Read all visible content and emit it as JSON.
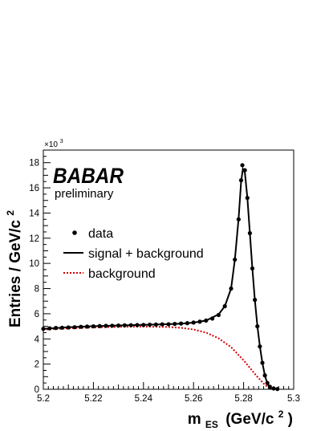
{
  "chart_data": {
    "type": "scatter",
    "xlabel_main": "m",
    "xlabel_sub": "ES",
    "xlabel_units": "(GeV/c",
    "xlabel_units_sup": "2",
    "xlabel_units_close": ")",
    "ylabel": "Entries / GeV/c",
    "ylabel_sup": "2",
    "y_multiplier_base": "×10",
    "y_multiplier_exp": "3",
    "xlim": [
      5.2,
      5.3
    ],
    "ylim": [
      0,
      19000
    ],
    "x_ticks": [
      "5.2",
      "5.22",
      "5.24",
      "5.26",
      "5.28",
      "5.3"
    ],
    "x_tick_values": [
      5.2,
      5.22,
      5.24,
      5.26,
      5.28,
      5.3
    ],
    "y_ticks": [
      "0",
      "2",
      "4",
      "6",
      "8",
      "10",
      "12",
      "14",
      "16",
      "18"
    ],
    "y_tick_values": [
      0,
      2000,
      4000,
      6000,
      8000,
      10000,
      12000,
      14000,
      16000,
      18000
    ],
    "grid": false,
    "legend_position": "left",
    "experiment_logo": "BABAR",
    "logo_subtitle": "preliminary",
    "series": [
      {
        "name": "data",
        "marker": "dot",
        "color": "#000000",
        "points": [
          [
            5.2,
            4800
          ],
          [
            5.2025,
            4840
          ],
          [
            5.205,
            4870
          ],
          [
            5.2075,
            4890
          ],
          [
            5.21,
            4910
          ],
          [
            5.2125,
            4930
          ],
          [
            5.215,
            4960
          ],
          [
            5.2175,
            4980
          ],
          [
            5.22,
            5000
          ],
          [
            5.2225,
            5020
          ],
          [
            5.225,
            5040
          ],
          [
            5.2275,
            5050
          ],
          [
            5.23,
            5060
          ],
          [
            5.2325,
            5080
          ],
          [
            5.235,
            5090
          ],
          [
            5.2375,
            5100
          ],
          [
            5.24,
            5110
          ],
          [
            5.2425,
            5130
          ],
          [
            5.245,
            5140
          ],
          [
            5.2475,
            5160
          ],
          [
            5.25,
            5170
          ],
          [
            5.2525,
            5190
          ],
          [
            5.255,
            5220
          ],
          [
            5.2575,
            5250
          ],
          [
            5.26,
            5300
          ],
          [
            5.2625,
            5370
          ],
          [
            5.265,
            5460
          ],
          [
            5.2675,
            5620
          ],
          [
            5.27,
            5900
          ],
          [
            5.2725,
            6600
          ],
          [
            5.275,
            8000
          ],
          [
            5.2765,
            10300
          ],
          [
            5.278,
            13500
          ],
          [
            5.279,
            16600
          ],
          [
            5.2795,
            17800
          ],
          [
            5.2805,
            17400
          ],
          [
            5.2815,
            15200
          ],
          [
            5.2825,
            12400
          ],
          [
            5.2835,
            9600
          ],
          [
            5.2845,
            7100
          ],
          [
            5.2855,
            5000
          ],
          [
            5.2865,
            3400
          ],
          [
            5.2875,
            2100
          ],
          [
            5.2885,
            1100
          ],
          [
            5.2895,
            500
          ],
          [
            5.2905,
            200
          ],
          [
            5.292,
            60
          ],
          [
            5.2935,
            20
          ]
        ]
      },
      {
        "name": "signal + background",
        "line_style": "solid",
        "color": "#000000",
        "points": [
          [
            5.2,
            4800
          ],
          [
            5.21,
            4920
          ],
          [
            5.22,
            5010
          ],
          [
            5.23,
            5070
          ],
          [
            5.24,
            5120
          ],
          [
            5.25,
            5170
          ],
          [
            5.255,
            5210
          ],
          [
            5.26,
            5290
          ],
          [
            5.265,
            5460
          ],
          [
            5.27,
            5950
          ],
          [
            5.2725,
            6600
          ],
          [
            5.275,
            8000
          ],
          [
            5.2765,
            10300
          ],
          [
            5.278,
            13600
          ],
          [
            5.279,
            16500
          ],
          [
            5.2797,
            17500
          ],
          [
            5.2805,
            17200
          ],
          [
            5.2815,
            15200
          ],
          [
            5.2825,
            12400
          ],
          [
            5.2835,
            9600
          ],
          [
            5.2845,
            7100
          ],
          [
            5.2855,
            5000
          ],
          [
            5.2865,
            3400
          ],
          [
            5.2875,
            2100
          ],
          [
            5.2885,
            1100
          ],
          [
            5.2895,
            450
          ],
          [
            5.2905,
            100
          ],
          [
            5.291,
            0
          ]
        ]
      },
      {
        "name": "background",
        "line_style": "dotted",
        "color": "#d40000",
        "points": [
          [
            5.2,
            4750
          ],
          [
            5.21,
            4840
          ],
          [
            5.22,
            4910
          ],
          [
            5.23,
            4960
          ],
          [
            5.24,
            4980
          ],
          [
            5.25,
            4950
          ],
          [
            5.255,
            4880
          ],
          [
            5.26,
            4750
          ],
          [
            5.265,
            4500
          ],
          [
            5.27,
            4050
          ],
          [
            5.275,
            3350
          ],
          [
            5.28,
            2300
          ],
          [
            5.285,
            1100
          ],
          [
            5.288,
            450
          ],
          [
            5.29,
            120
          ],
          [
            5.291,
            0
          ]
        ]
      }
    ]
  }
}
